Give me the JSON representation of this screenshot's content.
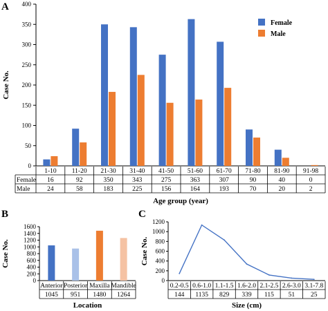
{
  "chart_data": [
    {
      "panel": "A",
      "type": "bar",
      "xlabel": "Age group (year)",
      "ylabel": "Case No.",
      "ylim": [
        0,
        400
      ],
      "yticks": [
        0,
        50,
        100,
        150,
        200,
        250,
        300,
        350,
        400
      ],
      "categories": [
        "1-10",
        "11-20",
        "21-30",
        "31-40",
        "41-50",
        "51-60",
        "61-70",
        "71-80",
        "81-90",
        "91-98"
      ],
      "series": [
        {
          "name": "Female",
          "color": "#4472C4",
          "values": [
            16,
            92,
            350,
            343,
            275,
            363,
            307,
            90,
            40,
            0
          ]
        },
        {
          "name": "Male",
          "color": "#ED7D31",
          "values": [
            24,
            58,
            183,
            225,
            156,
            164,
            193,
            70,
            20,
            2
          ]
        }
      ],
      "legend_position": "top-right",
      "table_rows": [
        "Female",
        "Male"
      ]
    },
    {
      "panel": "B",
      "type": "bar",
      "xlabel": "Location",
      "ylabel": "Case No.",
      "ylim": [
        0,
        1600
      ],
      "yticks": [
        0,
        200,
        400,
        600,
        800,
        1000,
        1200,
        1400,
        1600
      ],
      "categories": [
        "Anterior",
        "Posterior",
        "Maxilla",
        "Mandible"
      ],
      "values": [
        1045,
        951,
        1480,
        1264
      ],
      "colors": [
        "#4472C4",
        "#A9C1E8",
        "#ED7D31",
        "#F5C2A3"
      ]
    },
    {
      "panel": "C",
      "type": "line",
      "xlabel": "Size (cm)",
      "ylabel": "Case No.",
      "ylim": [
        0,
        1200
      ],
      "yticks": [
        0,
        200,
        400,
        600,
        800,
        1000,
        1200
      ],
      "categories": [
        "0.2-0.5",
        "0.6-1.0",
        "1.1-1.5",
        "1.6-2.0",
        "2.1-2.5",
        "2.6-3.0",
        "3.1-7.8"
      ],
      "values": [
        144,
        1135,
        829,
        339,
        115,
        51,
        25
      ],
      "color": "#4472C4"
    }
  ]
}
